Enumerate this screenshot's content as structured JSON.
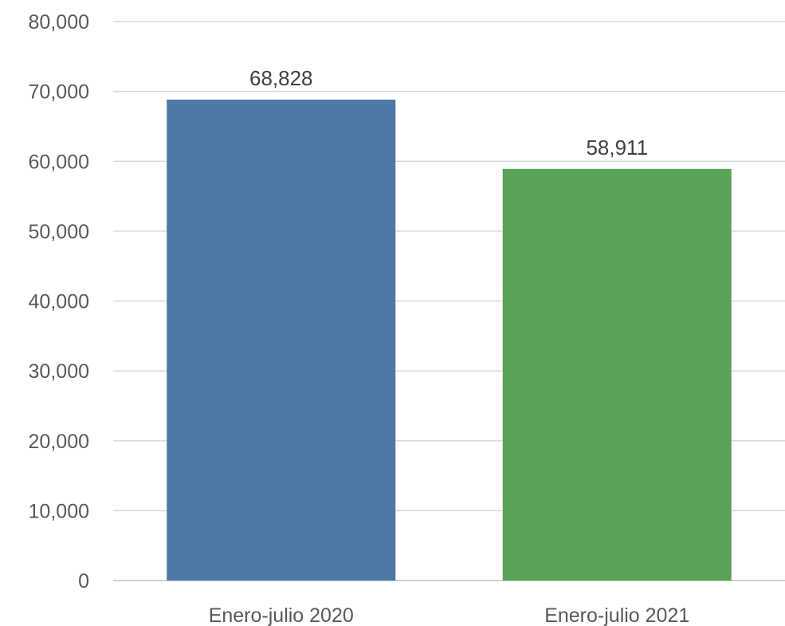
{
  "chart_data": {
    "type": "bar",
    "title": "",
    "xlabel": "",
    "ylabel": "",
    "categories": [
      "Enero-julio 2020",
      "Enero-julio 2021"
    ],
    "values": [
      68828,
      58911
    ],
    "value_labels": [
      "68,828",
      "58,911"
    ],
    "bar_colors": [
      "#4e79a5",
      "#5aa257"
    ],
    "ylim": [
      0,
      80000
    ],
    "yticks": [
      0,
      10000,
      20000,
      30000,
      40000,
      50000,
      60000,
      70000,
      80000
    ],
    "ytick_labels": [
      "0",
      "10,000",
      "20,000",
      "30,000",
      "40,000",
      "50,000",
      "60,000",
      "70,000",
      "80,000"
    ],
    "grid": true,
    "legend": "none"
  }
}
